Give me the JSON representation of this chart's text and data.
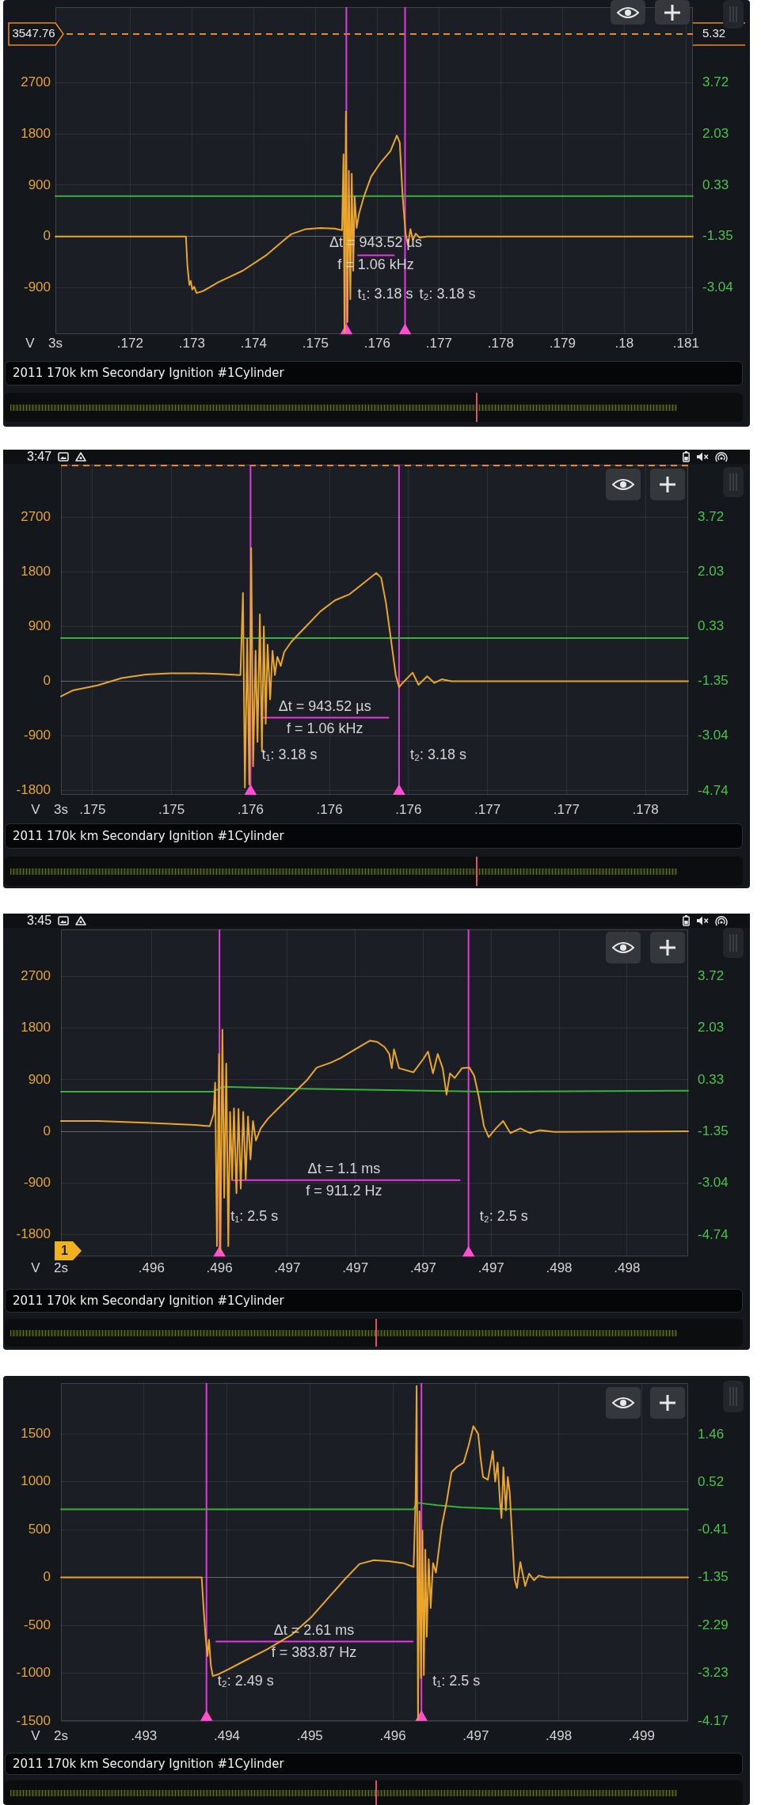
{
  "chart_data": [
    {
      "type": "line",
      "title": "2011 170k km Secondary Ignition #1Cylinder",
      "xlabel": "3s",
      "ylabel": "V",
      "xlim": [
        0.17079,
        0.18111
      ],
      "xticks": [
        {
          "value": 0.172,
          "label": ".172"
        },
        {
          "value": 0.173,
          "label": ".173"
        },
        {
          "value": 0.174,
          "label": ".174"
        },
        {
          "value": 0.175,
          "label": ".175"
        },
        {
          "value": 0.176,
          "label": ".176"
        },
        {
          "value": 0.177,
          "label": ".177"
        },
        {
          "value": 0.178,
          "label": ".178"
        },
        {
          "value": 0.179,
          "label": ".179"
        },
        {
          "value": 0.18,
          "label": ".18"
        },
        {
          "value": 0.181,
          "label": ".181"
        }
      ],
      "ylim": [
        -1710,
        4020
      ],
      "yticks": [
        -900,
        0,
        900,
        1800,
        2700
      ],
      "y2lim": [
        -4.56,
        6.2
      ],
      "y2ticks": [
        -3.04,
        -1.35,
        0.33,
        2.03,
        3.72
      ],
      "grid": true,
      "series": [
        {
          "color": "#e9a62b",
          "x": [
            0.17079,
            0.172903,
            0.172926,
            0.172958,
            0.172981,
            0.173005,
            0.173036,
            0.173075,
            0.173193,
            0.173429,
            0.173821,
            0.174213,
            0.174449,
            0.174606,
            0.174841,
            0.175077,
            0.175312,
            0.17543,
            0.175454,
            0.17547,
            0.175493,
            0.175517,
            0.17554,
            0.175564,
            0.175587,
            0.175611,
            0.175634,
            0.175666,
            0.175705,
            0.175784,
            0.175901,
            0.176058,
            0.176215,
            0.176317,
            0.176364,
            0.176411,
            0.176459,
            0.176498,
            0.176537,
            0.176576,
            0.176623,
            0.176686,
            0.176804,
            0.18111
          ],
          "values": [
            0,
            0,
            -500,
            -850,
            -780,
            -930,
            -880,
            -990,
            -950,
            -800,
            -600,
            -320,
            -100,
            40,
            130,
            150,
            140,
            110,
            1440,
            -1680,
            2190,
            -1500,
            1150,
            -1100,
            1100,
            -600,
            700,
            150,
            400,
            700,
            1050,
            1300,
            1500,
            1770,
            1650,
            700,
            50,
            -150,
            130,
            -60,
            50,
            -20,
            0,
            0
          ]
        },
        {
          "color": "#37b23a",
          "axis": "y2",
          "x": [
            0.17079,
            0.18111
          ],
          "values": [
            -0.02,
            -0.02
          ]
        },
        {
          "color": "#e23be0",
          "x": [
            0.175689,
            0.17627
          ],
          "values": [
            -330,
            -330
          ]
        },
        {
          "type": "scatter",
          "marker": "triangle",
          "color": "#ff4fd2",
          "x": [
            0.1755,
            0.17645
          ],
          "values": [
            -1650,
            -1650
          ]
        }
      ],
      "ref_lines": [
        {
          "axis": "y",
          "value": 3547.76,
          "label": "3547.76",
          "color": "#e8892b",
          "line_style": "dashed"
        },
        {
          "axis": "x",
          "value": 0.1755,
          "color": "#e23be0"
        },
        {
          "axis": "x",
          "value": 0.17645,
          "color": "#e23be0"
        }
      ],
      "annotations": [
        "Δt = 943.52 µs",
        "f = 1.06 kHz",
        "t₁: 3.18 s",
        "t₂: 3.18 s",
        {
          "text": "5.32",
          "x": 0.18111,
          "y": 3547.76
        }
      ]
    },
    {
      "type": "line",
      "title": "2011 170k km Secondary Ignition #1Cylinder",
      "subtitle": "3:47",
      "xlabel": "3s",
      "ylabel": "V",
      "xlim": [
        0.1743,
        0.17827
      ],
      "xticks": [
        {
          "value": 0.1745,
          "label": ".175"
        },
        {
          "value": 0.175,
          "label": ".175"
        },
        {
          "value": 0.1755,
          "label": ".176"
        },
        {
          "value": 0.176,
          "label": ".176"
        },
        {
          "value": 0.1765,
          "label": ".176"
        },
        {
          "value": 0.177,
          "label": ".177"
        },
        {
          "value": 0.1775,
          "label": ".177"
        },
        {
          "value": 0.178,
          "label": ".178"
        }
      ],
      "ylim": [
        -1870,
        3560
      ],
      "yticks": [
        -1800,
        -900,
        0,
        900,
        1800,
        2700
      ],
      "y2lim": [
        -4.86,
        5.33
      ],
      "y2ticks": [
        -4.74,
        -3.04,
        -1.35,
        0.33,
        2.03,
        3.72
      ],
      "grid": true,
      "series": [
        {
          "color": "#e9a62b",
          "x": [
            0.1743,
            0.174377,
            0.174531,
            0.174684,
            0.174838,
            0.174991,
            0.175145,
            0.175298,
            0.175436,
            0.175452,
            0.175464,
            0.175479,
            0.175492,
            0.175504,
            0.175516,
            0.175532,
            0.175544,
            0.175559,
            0.175572,
            0.175584,
            0.175596,
            0.175608,
            0.175624,
            0.175639,
            0.175654,
            0.17567,
            0.175691,
            0.175713,
            0.175759,
            0.175851,
            0.175943,
            0.176035,
            0.176127,
            0.176219,
            0.176296,
            0.176327,
            0.176357,
            0.176388,
            0.176419,
            0.17644,
            0.176459,
            0.176526,
            0.176563,
            0.176618,
            0.176664,
            0.17671,
            0.176772,
            0.17827
          ],
          "values": [
            -250,
            -150,
            -70,
            50,
            110,
            130,
            130,
            120,
            100,
            1450,
            -1750,
            700,
            -1700,
            2190,
            -1400,
            500,
            -1000,
            1100,
            -1150,
            900,
            -700,
            600,
            -300,
            500,
            100,
            400,
            250,
            480,
            650,
            900,
            1150,
            1330,
            1430,
            1620,
            1780,
            1700,
            1290,
            700,
            100,
            -100,
            -40,
            140,
            -60,
            80,
            -30,
            30,
            0,
            0
          ]
        },
        {
          "color": "#37b23a",
          "axis": "y2",
          "x": [
            0.1743,
            0.17827
          ],
          "values": [
            -0.02,
            -0.02
          ]
        },
        {
          "color": "#e23be0",
          "x": [
            0.175575,
            0.176373
          ],
          "values": [
            -600,
            -600
          ]
        },
        {
          "type": "scatter",
          "marker": "triangle",
          "color": "#ff4fd2",
          "x": [
            0.1755,
            0.17644
          ],
          "values": [
            -1810,
            -1810
          ]
        }
      ],
      "ref_lines": [
        {
          "axis": "y",
          "value": 3547.76,
          "color": "#e8892b",
          "line_style": "dashed"
        },
        {
          "axis": "x",
          "value": 0.1755,
          "color": "#e23be0"
        },
        {
          "axis": "x",
          "value": 0.17644,
          "color": "#e23be0"
        }
      ],
      "annotations": [
        "Δt = 943.52 µs",
        "f = 1.06 kHz",
        "t₁: 3.18 s",
        "t₂: 3.18 s"
      ]
    },
    {
      "type": "line",
      "title": "2011 170k km Secondary Ignition #1Cylinder",
      "subtitle": "3:45",
      "xlabel": "2s",
      "ylabel": "V",
      "xlim": [
        0.49558,
        0.49835
      ],
      "xticks": [
        {
          "value": 0.49598,
          "label": ".496"
        },
        {
          "value": 0.49628,
          "label": ".496"
        },
        {
          "value": 0.49658,
          "label": ".497"
        },
        {
          "value": 0.49688,
          "label": ".497"
        },
        {
          "value": 0.49718,
          "label": ".497"
        },
        {
          "value": 0.49748,
          "label": ".497"
        },
        {
          "value": 0.49778,
          "label": ".498"
        },
        {
          "value": 0.49808,
          "label": ".498"
        }
      ],
      "ylim": [
        -2180,
        3520
      ],
      "yticks": [
        -1800,
        -900,
        0,
        900,
        1800,
        2700
      ],
      "y2lim": [
        -5.44,
        5.26
      ],
      "y2ticks": [
        -4.74,
        -3.04,
        -1.35,
        0.33,
        2.03,
        3.72
      ],
      "grid": true,
      "series": [
        {
          "color": "#e9a62b",
          "x": [
            0.49558,
            0.495744,
            0.495959,
            0.496173,
            0.496237,
            0.496254,
            0.496261,
            0.496269,
            0.496278,
            0.496284,
            0.496293,
            0.496301,
            0.49631,
            0.496319,
            0.496327,
            0.496336,
            0.496344,
            0.496355,
            0.496364,
            0.496374,
            0.496385,
            0.496396,
            0.496406,
            0.496417,
            0.496428,
            0.496441,
            0.496462,
            0.496494,
            0.496537,
            0.496601,
            0.496666,
            0.496709,
            0.496773,
            0.496816,
            0.49688,
            0.496944,
            0.496976,
            0.497009,
            0.49703,
            0.497041,
            0.497051,
            0.497073,
            0.497137,
            0.49718,
            0.497201,
            0.497223,
            0.497244,
            0.497266,
            0.497283,
            0.497298,
            0.497319,
            0.497351,
            0.497384,
            0.497405,
            0.497426,
            0.497448,
            0.497469,
            0.497501,
            0.497533,
            0.497565,
            0.497609,
            0.497651,
            0.497694,
            0.497758,
            0.49835
          ],
          "values": [
            180,
            180,
            150,
            110,
            90,
            300,
            850,
            -2000,
            1350,
            -2100,
            1770,
            -1160,
            1180,
            -2000,
            340,
            -830,
            400,
            -1080,
            390,
            -1000,
            340,
            -830,
            260,
            -490,
            180,
            -160,
            50,
            220,
            390,
            640,
            890,
            1110,
            1200,
            1280,
            1430,
            1580,
            1560,
            1470,
            1350,
            1100,
            1430,
            1100,
            1030,
            1260,
            1390,
            1010,
            1350,
            1100,
            640,
            1010,
            930,
            1100,
            1110,
            970,
            590,
            90,
            -100,
            50,
            180,
            -30,
            50,
            -30,
            20,
            -10,
            0
          ]
        },
        {
          "color": "#37b23a",
          "axis": "y2",
          "x": [
            0.49558,
            0.496254,
            0.496293,
            0.496601,
            0.49703,
            0.497448,
            0.49835
          ],
          "values": [
            -0.05,
            -0.05,
            0.11,
            0.05,
            0,
            -0.05,
            -0.02
          ]
        },
        {
          "color": "#e23be0",
          "x": [
            0.496334,
            0.497341
          ],
          "values": [
            -850,
            -850
          ]
        },
        {
          "type": "scatter",
          "marker": "triangle",
          "color": "#ff4fd2",
          "x": [
            0.49628,
            0.49738
          ],
          "values": [
            -2120,
            -2120
          ]
        }
      ],
      "ref_lines": [
        {
          "axis": "x",
          "value": 0.49628,
          "color": "#e23be0"
        },
        {
          "axis": "x",
          "value": 0.49738,
          "color": "#e23be0"
        }
      ],
      "annotations": [
        "Δt = 1.1 ms",
        "f = 911.2 Hz",
        "t₁: 2.5 s",
        "t₂: 2.5 s",
        "1"
      ]
    },
    {
      "type": "line",
      "title": "2011 170k km Secondary Ignition #1Cylinder",
      "xlabel": "2s",
      "ylabel": "V",
      "xlim": [
        0.492,
        0.49956
      ],
      "xticks": [
        {
          "value": 0.493,
          "label": ".493"
        },
        {
          "value": 0.494,
          "label": ".494"
        },
        {
          "value": 0.495,
          "label": ".495"
        },
        {
          "value": 0.496,
          "label": ".496"
        },
        {
          "value": 0.497,
          "label": ".497"
        },
        {
          "value": 0.498,
          "label": ".498"
        },
        {
          "value": 0.499,
          "label": ".499"
        }
      ],
      "ylim": [
        -1500,
        2030
      ],
      "yticks": [
        -1500,
        -1000,
        -500,
        0,
        500,
        1000,
        1500
      ],
      "y2lim": [
        -4.17,
        2.47
      ],
      "y2ticks": [
        -4.17,
        -3.23,
        -2.29,
        -1.35,
        -0.41,
        0.52,
        1.46
      ],
      "grid": true,
      "series": [
        {
          "color": "#e9a62b",
          "x": [
            0.492,
            0.493696,
            0.493719,
            0.493743,
            0.493766,
            0.493784,
            0.493807,
            0.49383,
            0.493901,
            0.494018,
            0.494193,
            0.494485,
            0.494778,
            0.495012,
            0.495246,
            0.495421,
            0.495597,
            0.495772,
            0.495947,
            0.496123,
            0.496251,
            0.496275,
            0.496287,
            0.496304,
            0.496322,
            0.496339,
            0.496357,
            0.496374,
            0.496392,
            0.496409,
            0.496433,
            0.496456,
            0.496485,
            0.49652,
            0.496591,
            0.496649,
            0.496708,
            0.496766,
            0.496854,
            0.496912,
            0.496971,
            0.497029,
            0.497058,
            0.497088,
            0.497146,
            0.497205,
            0.497234,
            0.497263,
            0.497292,
            0.49731,
            0.497333,
            0.497363,
            0.497386,
            0.497409,
            0.497438,
            0.497468,
            0.497497,
            0.497537,
            0.497596,
            0.497643,
            0.497702,
            0.49776,
            0.497848,
            0.49956
          ],
          "values": [
            0,
            0,
            -320,
            -620,
            -820,
            -650,
            -920,
            -1030,
            -1010,
            -960,
            -880,
            -750,
            -600,
            -420,
            -190,
            -20,
            140,
            180,
            170,
            150,
            110,
            840,
            2000,
            -1490,
            690,
            -1050,
            490,
            -1020,
            290,
            -620,
            190,
            -320,
            150,
            50,
            540,
            790,
            1100,
            1150,
            1200,
            1370,
            1580,
            1500,
            1250,
            1050,
            1020,
            1320,
            1000,
            1200,
            790,
            620,
            1150,
            700,
            1050,
            890,
            440,
            -20,
            -110,
            160,
            -90,
            40,
            -30,
            20,
            0,
            0
          ]
        },
        {
          "color": "#37b23a",
          "axis": "y2",
          "x": [
            0.492,
            0.496251,
            0.496287,
            0.496532,
            0.496824,
            0.497117,
            0.497468,
            0.49956
          ],
          "values": [
            -0.01,
            -0.01,
            0.12,
            0.07,
            0.03,
            0.01,
            -0.01,
            -0.01
          ]
        },
        {
          "color": "#e23be0",
          "x": [
            0.493871,
            0.49624
          ],
          "values": [
            -670,
            -670
          ]
        },
        {
          "type": "scatter",
          "marker": "triangle",
          "color": "#ff4fd2",
          "x": [
            0.493754,
            0.496345
          ],
          "values": [
            -1460,
            -1460
          ]
        }
      ],
      "ref_lines": [
        {
          "axis": "x",
          "value": 0.493754,
          "color": "#e23be0"
        },
        {
          "axis": "x",
          "value": 0.496345,
          "color": "#e23be0"
        }
      ],
      "annotations": [
        "Δt = 2.61 ms",
        "f = 383.87 Hz",
        "t₂: 2.49 s",
        "t₁: 2.5 s"
      ]
    }
  ]
}
